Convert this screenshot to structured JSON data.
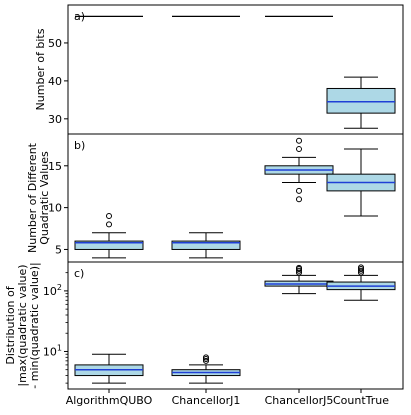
{
  "chart_data": [
    {
      "type": "box",
      "panel_label": "a)",
      "ylabel": "Number of bits",
      "yscale": "linear",
      "ylim": [
        26,
        60
      ],
      "yticks": [
        30,
        40,
        50
      ],
      "categories": [
        "AlgorithmQUBO",
        "ChancellorJ1",
        "ChancellorJ5",
        "CountTrue"
      ],
      "boxes": [
        {
          "whislo": 57,
          "q1": 57,
          "med": 57,
          "q3": 57,
          "whishi": 57,
          "fliers": []
        },
        {
          "whislo": 57,
          "q1": 57,
          "med": 57,
          "q3": 57,
          "whishi": 57,
          "fliers": []
        },
        {
          "whislo": 57,
          "q1": 57,
          "med": 57,
          "q3": 57,
          "whishi": 57,
          "fliers": []
        },
        {
          "whislo": 27.5,
          "q1": 31.5,
          "med": 34.5,
          "q3": 38,
          "whishi": 41,
          "fliers": []
        }
      ]
    },
    {
      "type": "box",
      "panel_label": "b)",
      "ylabel": "Number of Different\nQuadratic Values",
      "yscale": "linear",
      "ylim": [
        3.5,
        18.8
      ],
      "yticks": [
        5,
        10,
        15
      ],
      "categories": [
        "AlgorithmQUBO",
        "ChancellorJ1",
        "ChancellorJ5",
        "CountTrue"
      ],
      "boxes": [
        {
          "whislo": 4,
          "q1": 5,
          "med": 5.8,
          "q3": 6,
          "whishi": 7,
          "fliers": [
            8,
            9
          ]
        },
        {
          "whislo": 4,
          "q1": 5,
          "med": 5.8,
          "q3": 6,
          "whishi": 7,
          "fliers": []
        },
        {
          "whislo": 13,
          "q1": 14,
          "med": 14.5,
          "q3": 15,
          "whishi": 16,
          "fliers": [
            11,
            12,
            17,
            18
          ]
        },
        {
          "whislo": 9,
          "q1": 12,
          "med": 13,
          "q3": 14,
          "whishi": 17,
          "fliers": []
        }
      ]
    },
    {
      "type": "box",
      "panel_label": "c)",
      "ylabel": "Distribution of\n|max(quadratic value)\n- min(quadratic value)|",
      "yscale": "log",
      "ylim": [
        2.4,
        300
      ],
      "yticks": [
        10,
        100
      ],
      "ytick_labels": [
        "10^1",
        "10^2"
      ],
      "categories": [
        "AlgorithmQUBO",
        "ChancellorJ1",
        "ChancellorJ5",
        "CountTrue"
      ],
      "boxes": [
        {
          "whislo": 3,
          "q1": 4,
          "med": 5,
          "q3": 6,
          "whishi": 9,
          "fliers": []
        },
        {
          "whislo": 3,
          "q1": 4,
          "med": 4.5,
          "q3": 5,
          "whishi": 6,
          "fliers": [
            7,
            7.5,
            8
          ]
        },
        {
          "whislo": 90,
          "q1": 120,
          "med": 130,
          "q3": 145,
          "whishi": 180,
          "fliers": [
            200,
            215,
            230,
            240
          ]
        },
        {
          "whislo": 70,
          "q1": 105,
          "med": 120,
          "q3": 140,
          "whishi": 180,
          "fliers": [
            200,
            215,
            230,
            245
          ]
        }
      ]
    }
  ],
  "colors": {
    "box_fill": "#add8e6",
    "median": "#1f3fd6",
    "line": "#000000"
  }
}
